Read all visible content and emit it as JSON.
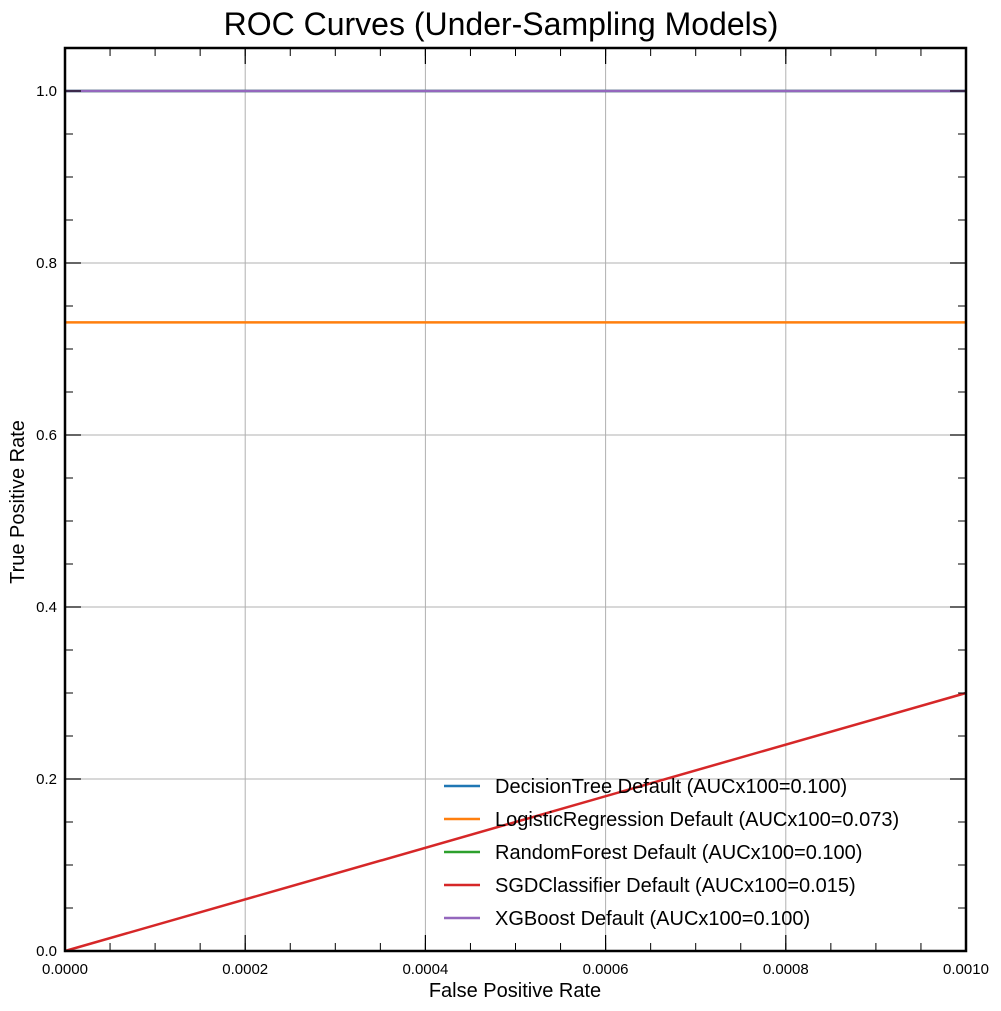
{
  "chart_data": {
    "type": "line",
    "title": "ROC Curves (Under-Sampling Models)",
    "xlabel": "False Positive Rate",
    "ylabel": "True Positive Rate",
    "xlim": [
      0,
      0.001
    ],
    "ylim": [
      0,
      1.05
    ],
    "xticks": [
      0,
      0.0002,
      0.0004,
      0.0006,
      0.0008,
      0.001
    ],
    "xtick_labels": [
      "0.0000",
      "0.0002",
      "0.0004",
      "0.0006",
      "0.0008",
      "0.0010"
    ],
    "yticks": [
      0,
      0.2,
      0.4,
      0.6,
      0.8,
      1.0
    ],
    "ytick_labels": [
      "0.0",
      "0.2",
      "0.4",
      "0.6",
      "0.8",
      "1.0"
    ],
    "grid": true,
    "legend_position": "lower-right",
    "series": [
      {
        "name": "DecisionTree Default (AUCx100=0.100)",
        "color": "#1f77b4",
        "x": [
          0,
          0.001
        ],
        "y": [
          1.0,
          1.0
        ]
      },
      {
        "name": "LogisticRegression Default (AUCx100=0.073)",
        "color": "#ff7f0e",
        "x": [
          0,
          0.001
        ],
        "y": [
          0.731,
          0.731
        ]
      },
      {
        "name": "RandomForest Default (AUCx100=0.100)",
        "color": "#2ca02c",
        "x": [
          0,
          0.001
        ],
        "y": [
          1.0,
          1.0
        ]
      },
      {
        "name": "SGDClassifier Default (AUCx100=0.015)",
        "color": "#d62728",
        "x": [
          0,
          0.001
        ],
        "y": [
          0,
          0.3
        ]
      },
      {
        "name": "XGBoost Default (AUCx100=0.100)",
        "color": "#9467bd",
        "x": [
          0,
          0.001
        ],
        "y": [
          1.0,
          1.0
        ]
      }
    ]
  }
}
